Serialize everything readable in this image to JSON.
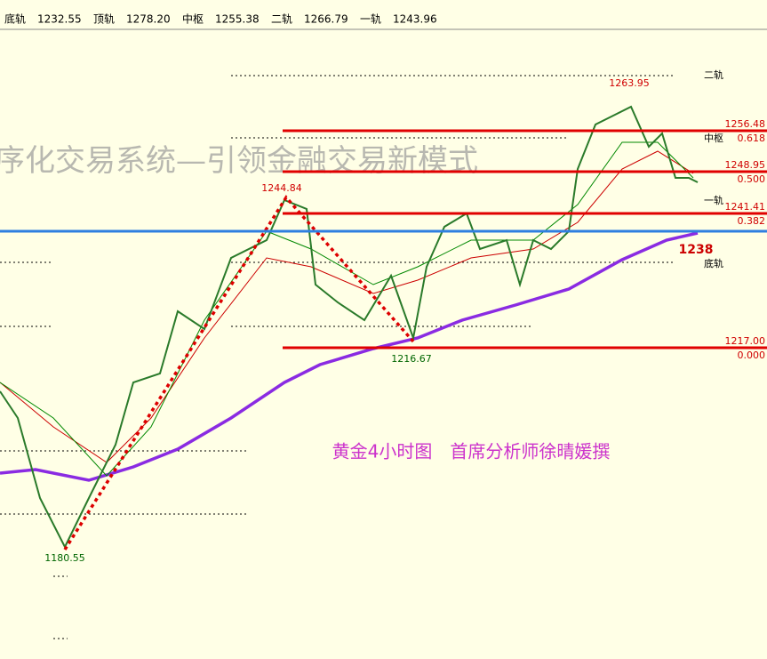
{
  "header": {
    "items": [
      {
        "label": "底轨",
        "value": "1232.55"
      },
      {
        "label": "顶轨",
        "value": "1278.20"
      },
      {
        "label": "中枢",
        "value": "1255.38"
      },
      {
        "label": "二轨",
        "value": "1266.79"
      },
      {
        "label": "一轨",
        "value": "1243.96"
      }
    ]
  },
  "watermark": "程序化交易系统—引领金融交易新模式",
  "caption": "黄金4小时图　首席分析师徐晴媛撰",
  "levels": [
    {
      "price": "1256.48",
      "ratio": "0.618"
    },
    {
      "price": "1248.95",
      "ratio": "0.500"
    },
    {
      "price": "1241.41",
      "ratio": "0.382"
    },
    {
      "price": "1217.00",
      "ratio": "0.000"
    }
  ],
  "rails": [
    "二轨",
    "中枢",
    "一轨",
    "底轨"
  ],
  "current": "1238",
  "annotations": [
    "1263.95",
    "1244.84",
    "1216.67",
    "1180.55"
  ]
}
